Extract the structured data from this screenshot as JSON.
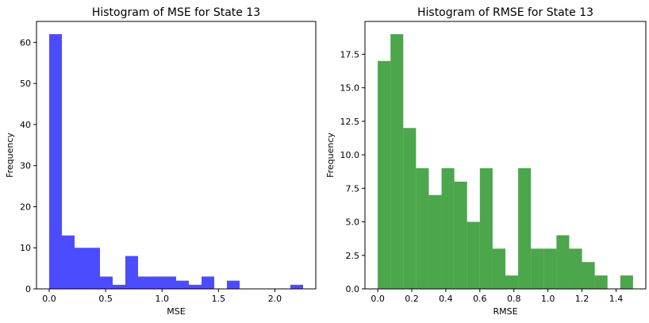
{
  "chart_data": [
    {
      "type": "bar",
      "title": "Histogram of MSE for State 13",
      "xlabel": "MSE",
      "ylabel": "Frequency",
      "color": "#0000ff",
      "opacity": 0.7,
      "bin_edges": [
        0.0,
        0.1125,
        0.225,
        0.3375,
        0.45,
        0.5625,
        0.675,
        0.7875,
        0.9,
        1.0125,
        1.125,
        1.2375,
        1.35,
        1.4625,
        1.575,
        1.6875,
        1.8,
        1.9125,
        2.025,
        2.1375,
        2.25
      ],
      "values": [
        62,
        13,
        10,
        10,
        3,
        1,
        8,
        3,
        3,
        3,
        2,
        1,
        3,
        0,
        2,
        0,
        0,
        0,
        0,
        1
      ],
      "xlim": [
        -0.1125,
        2.3625
      ],
      "ylim": [
        0,
        65.1
      ],
      "xticks": [
        0.0,
        0.5,
        1.0,
        1.5,
        2.0
      ],
      "xtick_labels": [
        "0.0",
        "0.5",
        "1.0",
        "1.5",
        "2.0"
      ],
      "yticks": [
        0,
        10,
        20,
        30,
        40,
        50,
        60
      ],
      "ytick_labels": [
        "0",
        "10",
        "20",
        "30",
        "40",
        "50",
        "60"
      ],
      "grid": false
    },
    {
      "type": "bar",
      "title": "Histogram of RMSE for State 13",
      "xlabel": "RMSE",
      "ylabel": "Frequency",
      "color": "#008000",
      "opacity": 0.7,
      "bin_edges": [
        0.0,
        0.075,
        0.15,
        0.225,
        0.3,
        0.375,
        0.45,
        0.525,
        0.6,
        0.675,
        0.75,
        0.825,
        0.9,
        0.975,
        1.05,
        1.125,
        1.2,
        1.275,
        1.35,
        1.425,
        1.5
      ],
      "values": [
        17,
        19,
        12,
        9,
        7,
        9,
        8,
        5,
        9,
        3,
        1,
        9,
        3,
        3,
        4,
        3,
        2,
        1,
        0,
        1
      ],
      "xlim": [
        -0.075,
        1.575
      ],
      "ylim": [
        0,
        19.95
      ],
      "xticks": [
        0.0,
        0.2,
        0.4,
        0.6,
        0.8,
        1.0,
        1.2,
        1.4
      ],
      "xtick_labels": [
        "0.0",
        "0.2",
        "0.4",
        "0.6",
        "0.8",
        "1.0",
        "1.2",
        "1.4"
      ],
      "yticks": [
        0.0,
        2.5,
        5.0,
        7.5,
        10.0,
        12.5,
        15.0,
        17.5
      ],
      "ytick_labels": [
        "0.0",
        "2.5",
        "5.0",
        "7.5",
        "10.0",
        "12.5",
        "15.0",
        "17.5"
      ],
      "grid": false
    }
  ]
}
